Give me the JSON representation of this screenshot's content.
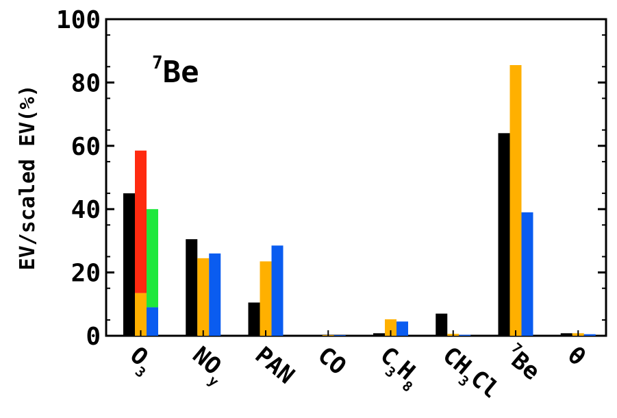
{
  "chart_data": {
    "type": "bar",
    "title": "",
    "annotation": {
      "sup": "7",
      "text": "Be"
    },
    "ylabel": "EV/scaled EV(%)",
    "xlabel": "",
    "ylim": [
      0,
      100
    ],
    "yticks": [
      "0",
      "20",
      "40",
      "60",
      "80",
      "100"
    ],
    "grid": false,
    "colors": {
      "black": "#000000",
      "orange": "#ffb000",
      "blue": "#0a5cf0",
      "red": "#ff2a10",
      "green": "#1ee83c"
    },
    "categories": [
      {
        "label": "O3",
        "base": "O",
        "sub1": "3",
        "mid": "",
        "sub2": ""
      },
      {
        "label": "NOy",
        "base": "NO",
        "sub1": "y",
        "mid": "",
        "sub2": ""
      },
      {
        "label": "PAN",
        "base": "PAN",
        "sub1": "",
        "mid": "",
        "sub2": ""
      },
      {
        "label": "CO",
        "base": "CO",
        "sub1": "",
        "mid": "",
        "sub2": ""
      },
      {
        "label": "C3H8",
        "base": "C",
        "sub1": "3",
        "mid": "H",
        "sub2": "8"
      },
      {
        "label": "CH3Cl",
        "base": "CH",
        "sub1": "3",
        "mid": "Cl",
        "sub2": ""
      },
      {
        "label": "7Be",
        "sup": "7",
        "base": "Be",
        "sub1": "",
        "mid": "",
        "sub2": ""
      },
      {
        "label": "θ",
        "base": "θ",
        "sub1": "",
        "mid": "",
        "sub2": ""
      }
    ],
    "series": [
      {
        "color": "black",
        "values": [
          45,
          30.5,
          10.5,
          0,
          0.8,
          7,
          64,
          0.8
        ]
      },
      {
        "color": "orange",
        "values": [
          13.5,
          24.5,
          23.5,
          0.2,
          5.2,
          0.6,
          85.5,
          0.8
        ]
      },
      {
        "color": "blue",
        "values": [
          9,
          26,
          28.5,
          0.2,
          4.5,
          0.3,
          39,
          0.5
        ]
      }
    ],
    "overlay_bars": [
      {
        "category": "O3",
        "series_index": 1,
        "color": "red",
        "from": 13.5,
        "to": 58.5
      },
      {
        "category": "O3",
        "series_index": 2,
        "color": "green",
        "from": 9,
        "to": 40
      }
    ]
  }
}
